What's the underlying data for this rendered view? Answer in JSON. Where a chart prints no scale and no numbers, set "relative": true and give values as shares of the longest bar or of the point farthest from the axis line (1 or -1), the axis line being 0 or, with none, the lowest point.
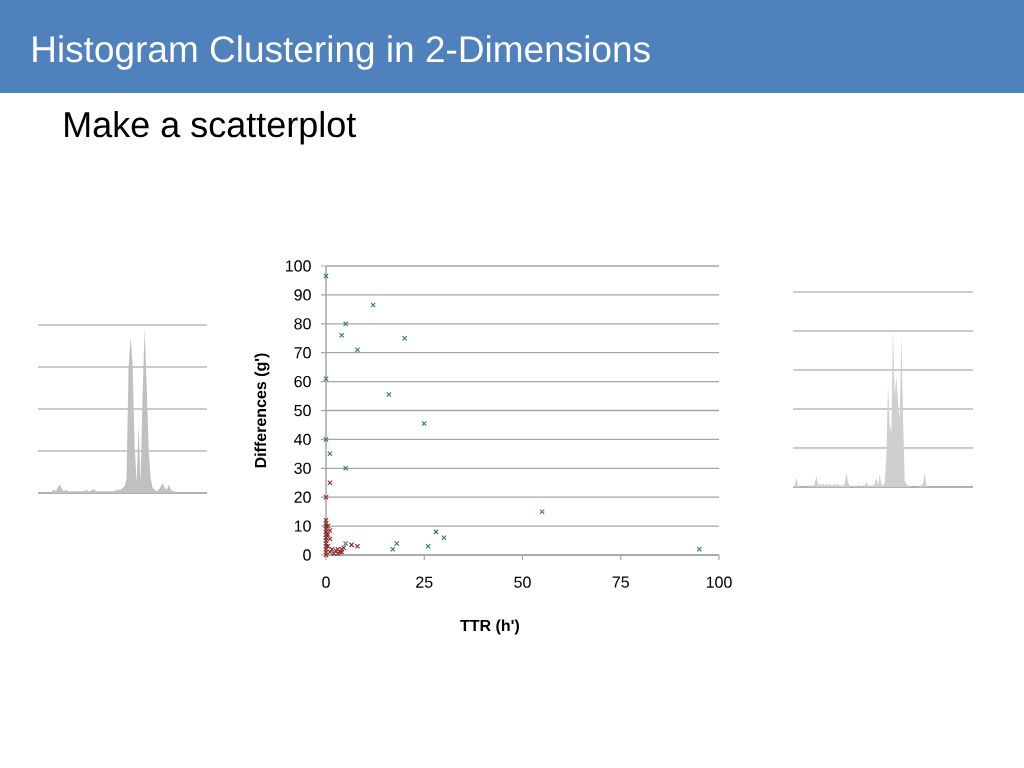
{
  "chart_data": [
    {
      "type": "area",
      "relative": true,
      "grid": "y",
      "color": "#c0c0c0",
      "categories": [
        null,
        null,
        null,
        null,
        null,
        null,
        null,
        null,
        null,
        null,
        null,
        null,
        null,
        null,
        null,
        null,
        null,
        null,
        null,
        null,
        null,
        null,
        null,
        null,
        null,
        null,
        null,
        null,
        null,
        null,
        null,
        null,
        null,
        null,
        null,
        null,
        null,
        null,
        null,
        null,
        null,
        null,
        null,
        null,
        null,
        null,
        null,
        null,
        null,
        null,
        null,
        null,
        null,
        null,
        null,
        null,
        null,
        null,
        null,
        null,
        null,
        null,
        null,
        null,
        null,
        null,
        null,
        null,
        null,
        null,
        null,
        null,
        null,
        null,
        null,
        null,
        null,
        null,
        null,
        null,
        null,
        null,
        null,
        null,
        null
      ],
      "values": [
        0,
        0,
        0,
        0,
        0,
        0,
        0,
        0.01,
        0.02,
        0.01,
        0.04,
        0.05,
        0.02,
        0.01,
        0.02,
        0.01,
        0.01,
        0.01,
        0.01,
        0.01,
        0.01,
        0.01,
        0.01,
        0.01,
        0.02,
        0.01,
        0.01,
        0.02,
        0.02,
        0.01,
        0.01,
        0.01,
        0.01,
        0.01,
        0.01,
        0.01,
        0.01,
        0.01,
        0.01,
        0.02,
        0.02,
        0.02,
        0.03,
        0.04,
        0.09,
        0.76,
        0.95,
        0.79,
        0.3,
        0.06,
        0.41,
        0.07,
        0.61,
        1,
        0.67,
        0.27,
        0.09,
        0.03,
        0.02,
        0.01,
        0.02,
        0.04,
        0.06,
        0.03,
        0.02,
        0.05,
        0.02,
        0.01,
        0.01,
        0,
        0,
        0,
        0,
        0,
        0,
        0,
        0,
        0,
        0,
        0,
        0,
        0,
        0,
        0,
        0
      ]
    },
    {
      "type": "scatter",
      "title": "Histogram Clustering in 2-Dimensions",
      "subtitle": "Make a scatterplot",
      "xlabel": "TTR (h')",
      "ylabel": "Differences (g')",
      "xlim": [
        0,
        100
      ],
      "xticks": [
        0,
        25,
        50,
        75,
        100
      ],
      "ylim": [
        0,
        100
      ],
      "yticks": [
        0,
        10,
        20,
        30,
        40,
        50,
        60,
        70,
        80,
        90,
        100
      ],
      "grid": "y",
      "marker": "cross",
      "series": [
        {
          "color": "#2b7a74",
          "x": [
            0,
            12,
            5,
            4,
            8,
            20,
            0,
            16,
            25,
            0,
            1,
            5,
            55,
            95,
            17,
            18,
            26,
            28,
            30,
            5
          ],
          "values": [
            96.5,
            86.5,
            80,
            76,
            71,
            75,
            61,
            55.5,
            45.5,
            40,
            35,
            30,
            15,
            2,
            2,
            4,
            3,
            8,
            6,
            4
          ]
        },
        {
          "color": "#8b2a2a",
          "x": [
            0,
            1,
            0,
            0,
            0,
            0,
            0,
            0,
            0,
            0,
            0,
            0,
            0,
            0,
            0,
            0.5,
            0.5,
            0.5,
            1,
            1,
            1,
            1.5,
            2,
            2.5,
            3,
            3,
            3.5,
            4,
            4,
            4.5,
            6.5,
            8
          ],
          "values": [
            20,
            25,
            12,
            11,
            10,
            9,
            8,
            7,
            6,
            5,
            4,
            3,
            2,
            1,
            0,
            10,
            7,
            3,
            8.5,
            5.5,
            1,
            2,
            0.5,
            1.5,
            2,
            0.5,
            1,
            2,
            1,
            2.5,
            3.5,
            3
          ]
        }
      ]
    },
    {
      "type": "area",
      "relative": true,
      "grid": "y",
      "color": "#cfcfcf",
      "categories": [
        null,
        null,
        null,
        null,
        null,
        null,
        null,
        null,
        null,
        null,
        null,
        null,
        null,
        null,
        null,
        null,
        null,
        null,
        null,
        null,
        null,
        null,
        null,
        null,
        null,
        null,
        null,
        null,
        null,
        null,
        null,
        null,
        null,
        null,
        null,
        null,
        null,
        null,
        null,
        null,
        null,
        null,
        null,
        null,
        null,
        null,
        null,
        null,
        null,
        null,
        null,
        null,
        null,
        null,
        null,
        null,
        null,
        null,
        null,
        null,
        null,
        null,
        null,
        null,
        null,
        null,
        null,
        null,
        null,
        null,
        null,
        null,
        null,
        null,
        null,
        null,
        null,
        null,
        null,
        null,
        null,
        null,
        null,
        null,
        null,
        null,
        null,
        null,
        null,
        null,
        null,
        null,
        null,
        null,
        null,
        null,
        null,
        null,
        null,
        null,
        null,
        null,
        null,
        null,
        null,
        null,
        null,
        null,
        null
      ],
      "values": [
        0,
        0.01,
        0.06,
        0.01,
        0,
        0,
        0,
        0,
        0,
        0.01,
        0.01,
        0.01,
        0.01,
        0.02,
        0.07,
        0.01,
        0.02,
        0.01,
        0.02,
        0.01,
        0.02,
        0.01,
        0.02,
        0.01,
        0.01,
        0.02,
        0.01,
        0.02,
        0.01,
        0.01,
        0.01,
        0.02,
        0.09,
        0.03,
        0.01,
        0,
        0,
        0.01,
        0.01,
        0,
        0,
        0.01,
        0.01,
        0.01,
        0.03,
        0.01,
        0.01,
        0.01,
        0.01,
        0.02,
        0.06,
        0.01,
        0.08,
        0.02,
        0.01,
        0.03,
        0.19,
        0.65,
        0.39,
        0.35,
        1,
        0.58,
        0.7,
        0.54,
        0.43,
        0.96,
        0.45,
        0.04,
        0.02,
        0.01,
        0.01,
        0,
        0,
        0,
        0,
        0,
        0.01,
        0.01,
        0.02,
        0.09,
        0.01,
        0,
        0,
        0,
        0,
        0,
        0,
        0,
        0,
        0,
        0,
        0,
        0,
        0,
        0,
        0,
        0,
        0,
        0,
        0,
        0,
        0,
        0,
        0,
        0,
        0,
        0,
        0,
        0
      ]
    }
  ]
}
